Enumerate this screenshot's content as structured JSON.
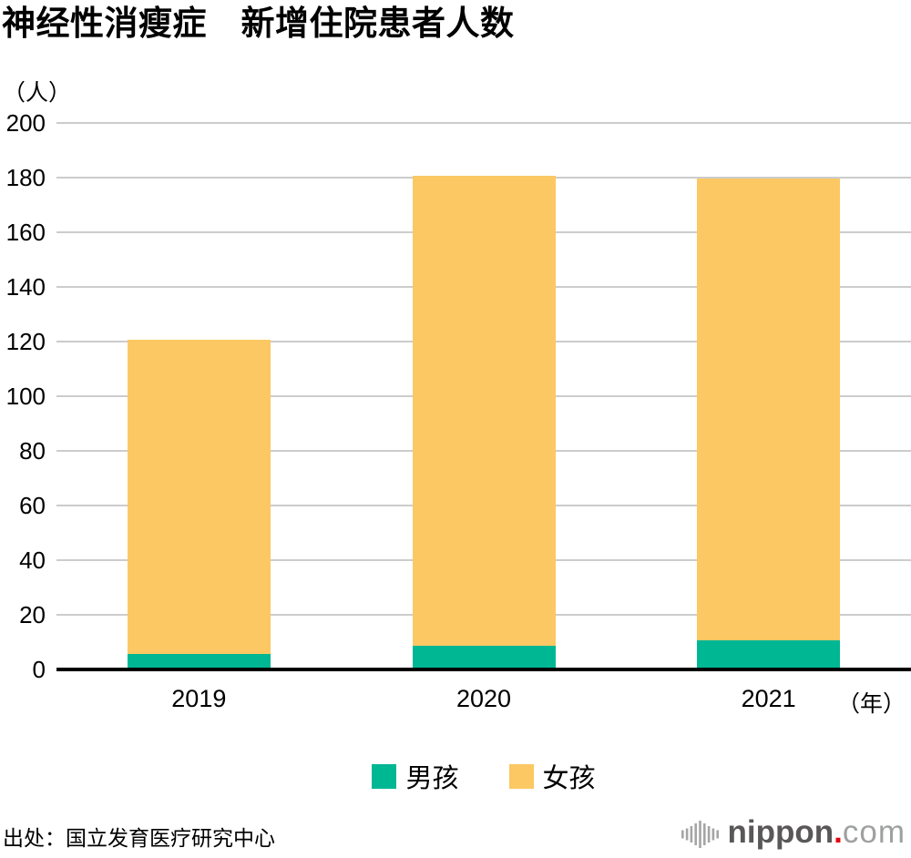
{
  "title": "神经性消瘦症　新增住院患者人数",
  "y_axis_unit": "（人）",
  "x_axis_unit": "（年）",
  "source": "出处：国立发育医疗研究中心",
  "logo": {
    "brand": "nippon",
    "dot": ".",
    "tld": "com",
    "brand_color": "#595757",
    "dot_color": "#e60012",
    "tld_color": "#9fa0a0",
    "icon_color": "#a5a5a5"
  },
  "colors": {
    "boys": "#00b794",
    "girls": "#fcc863",
    "gridline": "#cccccc",
    "axis": "#000000"
  },
  "chart_data": {
    "type": "bar",
    "stacked": true,
    "title": "神经性消瘦症　新增住院患者人数",
    "categories": [
      "2019",
      "2020",
      "2021"
    ],
    "series": [
      {
        "name": "男孩",
        "color": "#00b794",
        "values": [
          5,
          8,
          10
        ]
      },
      {
        "name": "女孩",
        "color": "#fcc863",
        "values": [
          115,
          172,
          169
        ]
      }
    ],
    "totals": [
      120,
      180,
      179
    ],
    "xlabel": "（年）",
    "ylabel": "（人）",
    "ylim": [
      0,
      200
    ],
    "yticks": [
      0,
      20,
      40,
      60,
      80,
      100,
      120,
      140,
      160,
      180,
      200
    ],
    "grid": true,
    "legend_position": "bottom"
  }
}
